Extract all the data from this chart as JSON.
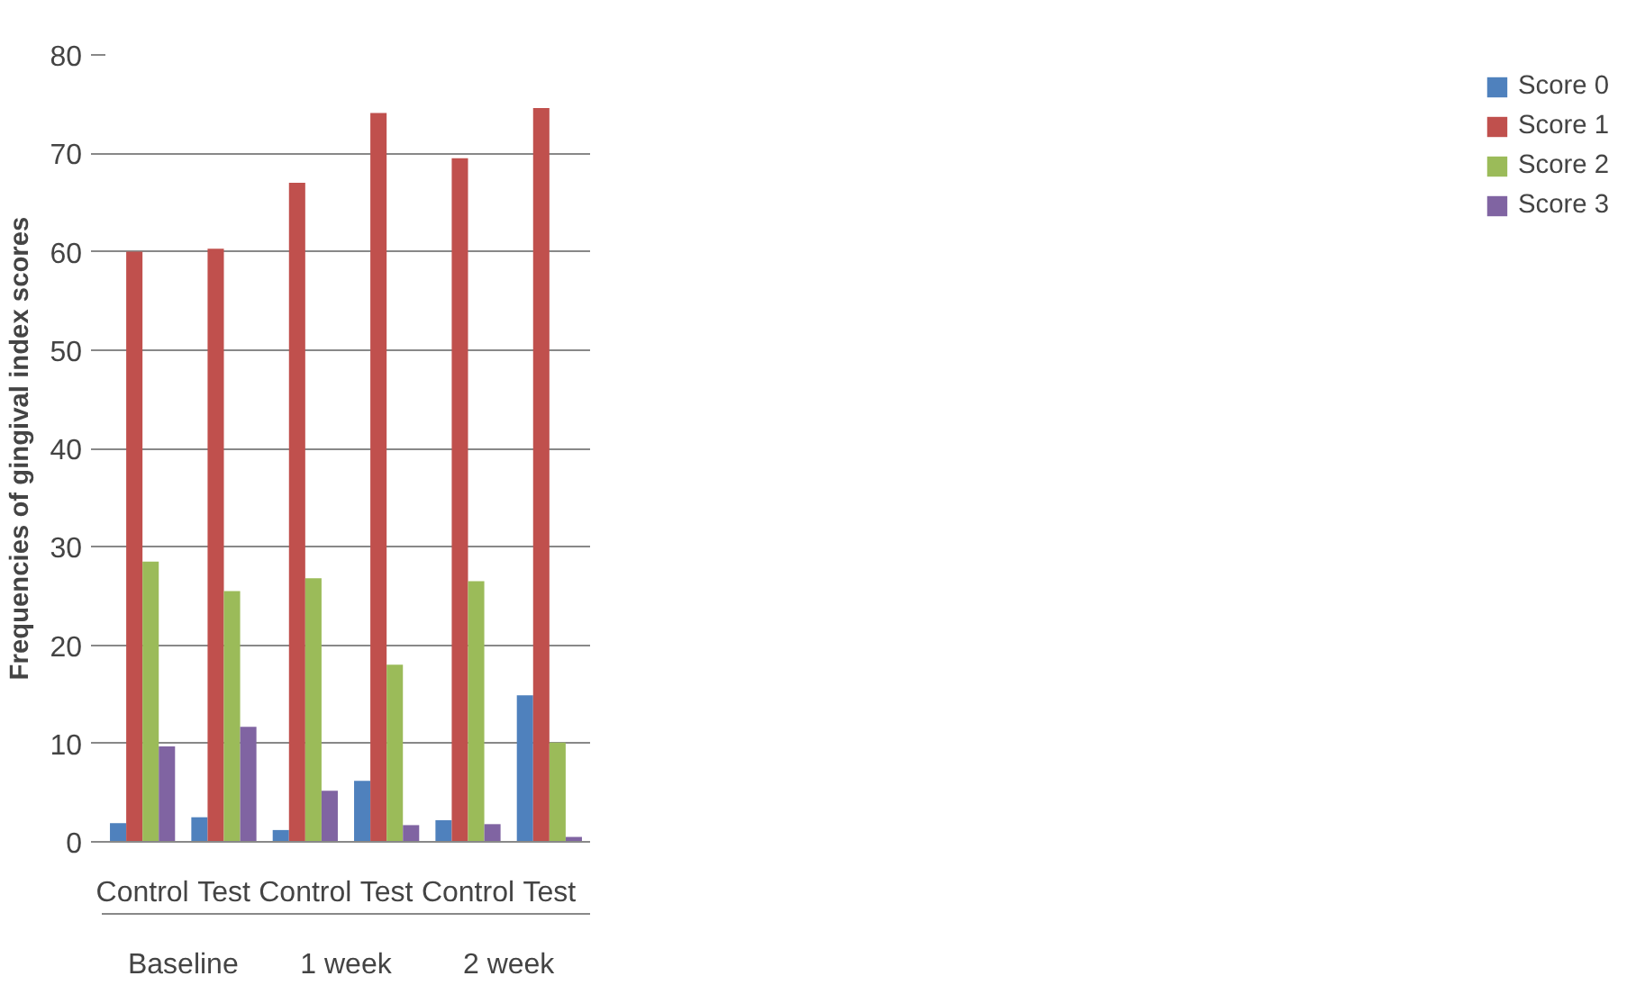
{
  "chart_data": {
    "type": "bar",
    "ylabel": "Frequencies of gingival index scores",
    "categories": [
      "Control",
      "Test",
      "Control",
      "Test",
      "Control",
      "Test"
    ],
    "annotations": [
      "Baseline",
      "1 week",
      "2 week"
    ],
    "series": [
      {
        "name": "Score 0",
        "color": "#4f81bd",
        "values": [
          1.9,
          2.5,
          1.2,
          6.2,
          2.2,
          14.9
        ]
      },
      {
        "name": "Score 1",
        "color": "#c0504d",
        "values": [
          60,
          60.3,
          67,
          74.1,
          69.5,
          74.6
        ]
      },
      {
        "name": "Score 2",
        "color": "#9bbb59",
        "values": [
          28.5,
          25.5,
          26.8,
          18,
          26.5,
          10.1
        ]
      },
      {
        "name": "Score 3",
        "color": "#8064a2",
        "values": [
          9.7,
          11.7,
          5.2,
          1.7,
          1.8,
          0.5
        ]
      }
    ],
    "ylim": [
      0,
      80
    ],
    "yticks": [
      0,
      10,
      20,
      30,
      40,
      50,
      60,
      70,
      80
    ],
    "grid": "y",
    "legend": "right"
  }
}
